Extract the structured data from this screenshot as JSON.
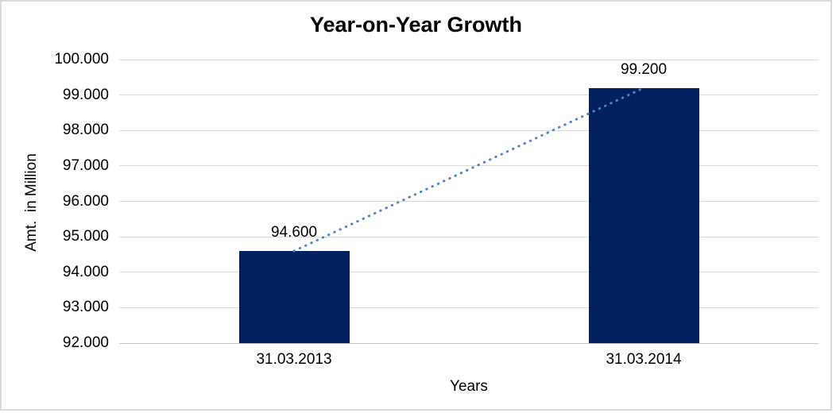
{
  "chart_data": {
    "type": "bar",
    "title": "Year-on-Year Growth",
    "xlabel": "Years",
    "ylabel": "Amt.  in Million",
    "categories": [
      "31.03.2013",
      "31.03.2014"
    ],
    "values": [
      94600,
      99200
    ],
    "value_labels": [
      "94.600",
      "99.200"
    ],
    "ylim": [
      92000,
      100000
    ],
    "ytick_values": [
      92000,
      93000,
      94000,
      95000,
      96000,
      97000,
      98000,
      99000,
      100000
    ],
    "ytick_labels": [
      "92.000",
      "93.000",
      "94.000",
      "95.000",
      "96.000",
      "97.000",
      "98.000",
      "99.000",
      "100.000"
    ],
    "grid": true,
    "legend": "none",
    "bar_color": "#002060",
    "trendline": {
      "type": "linear",
      "style": "dotted",
      "color": "#4e86c9",
      "from_value": 94600,
      "to_value": 99200
    }
  }
}
